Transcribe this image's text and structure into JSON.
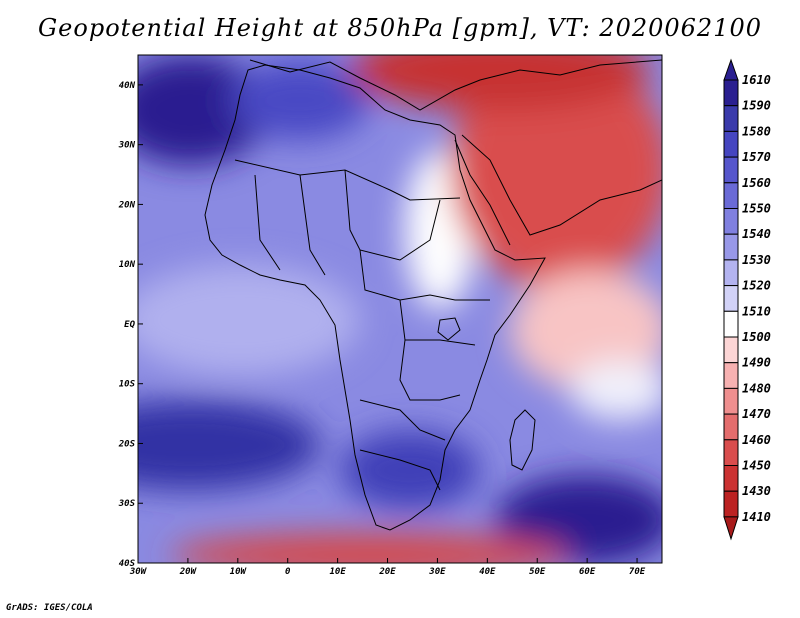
{
  "title": "Geopotential Height at 850hPa [gpm], VT: 2020062100",
  "credit": "GrADS: IGES/COLA",
  "chart_data": {
    "type": "heatmap",
    "variable": "Geopotential Height at 850hPa",
    "units": "gpm",
    "valid_time": "2020062100",
    "lon_range": [
      -30,
      75
    ],
    "lat_range": [
      -40,
      45
    ],
    "x_ticks": [
      "30W",
      "20W",
      "10W",
      "0",
      "10E",
      "20E",
      "30E",
      "40E",
      "50E",
      "60E",
      "70E"
    ],
    "x_tick_values": [
      -30,
      -20,
      -10,
      0,
      10,
      20,
      30,
      40,
      50,
      60,
      70
    ],
    "y_ticks": [
      "40N",
      "30N",
      "20N",
      "10N",
      "EQ",
      "10S",
      "20S",
      "30S",
      "40S"
    ],
    "y_tick_values": [
      40,
      30,
      20,
      10,
      0,
      -10,
      -20,
      -30,
      -40
    ],
    "colorbar": {
      "levels": [
        "1610",
        "1590",
        "1580",
        "1570",
        "1560",
        "1550",
        "1540",
        "1530",
        "1520",
        "1510",
        "1500",
        "1490",
        "1480",
        "1470",
        "1460",
        "1450",
        "1430",
        "1410"
      ],
      "colors": [
        "#2a1f90",
        "#3a3aab",
        "#4545c0",
        "#5656cc",
        "#6a6ad6",
        "#8080e0",
        "#9898e8",
        "#b3b3f0",
        "#d2d2f7",
        "#ffffff",
        "#fcd5d5",
        "#f7b1b1",
        "#ef8f8f",
        "#e46d6d",
        "#d94d4d",
        "#cb3232",
        "#bc2222",
        "#a81a1a"
      ]
    },
    "field_features": [
      {
        "name": "high-north-atlantic",
        "lon": -26,
        "lat": 35,
        "value": 1600
      },
      {
        "name": "high-south-atlantic",
        "lon": -15,
        "lat": -27,
        "value": 1595
      },
      {
        "name": "high-south-indian",
        "lon": 58,
        "lat": -33,
        "value": 1600
      },
      {
        "name": "high-southern-africa",
        "lon": 25,
        "lat": -24,
        "value": 1580
      },
      {
        "name": "low-arabia",
        "lon": 55,
        "lat": 25,
        "value": 1440
      },
      {
        "name": "low-turkey",
        "lon": 40,
        "lat": 40,
        "value": 1450
      },
      {
        "name": "low-far-south",
        "lon": 20,
        "lat": -39,
        "value": 1430
      }
    ]
  }
}
